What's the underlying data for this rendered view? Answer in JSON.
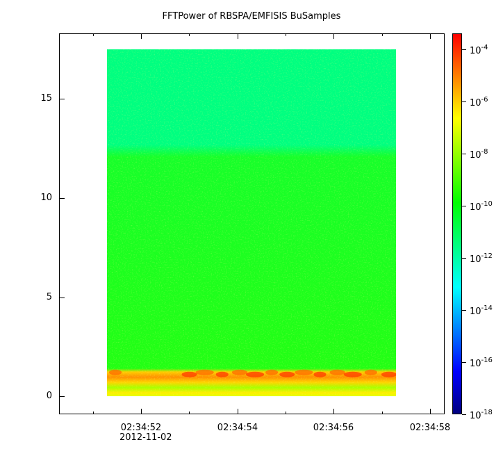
{
  "chart_data": {
    "type": "heatmap",
    "title": "FFTPower of RBSPA/EMFISIS  BuSamples",
    "x_tick_labels": [
      "02:34:52",
      "02:34:54",
      "02:34:56",
      "02:34:58"
    ],
    "x_tick_values_s": [
      52,
      54,
      56,
      58
    ],
    "x_minor_ticks_s": [
      51,
      53,
      55,
      57
    ],
    "x_range_s": [
      50.3,
      58.3
    ],
    "data_x_range_s": [
      51.3,
      57.3
    ],
    "date_label": "2012-11-02",
    "y_ticks": [
      0,
      5,
      10,
      15
    ],
    "y_range": [
      -0.9,
      18.3
    ],
    "data_y_range": [
      0,
      17.5
    ],
    "colorbar": {
      "scale": "log",
      "range_exp": [
        -18,
        -3.4
      ],
      "tick_exps": [
        -4,
        -6,
        -8,
        -10,
        -12,
        -14,
        -16,
        -18
      ],
      "tick_base": "10",
      "colormap": [
        "#00007f",
        "#0000ff",
        "#0080ff",
        "#00ffff",
        "#00ff80",
        "#00ff00",
        "#80ff00",
        "#ffff00",
        "#ff8000",
        "#ff0000"
      ]
    },
    "bands": [
      {
        "y_min": 12.2,
        "y_max": 17.5,
        "color": "#00ff80"
      },
      {
        "y_min": 1.4,
        "y_max": 12.2,
        "color": "#1eff1a"
      },
      {
        "y_min": 0.9,
        "y_max": 1.4,
        "color": "#ff8a00"
      },
      {
        "y_min": 0.0,
        "y_max": 0.9,
        "color": "#c8ff00"
      }
    ]
  }
}
